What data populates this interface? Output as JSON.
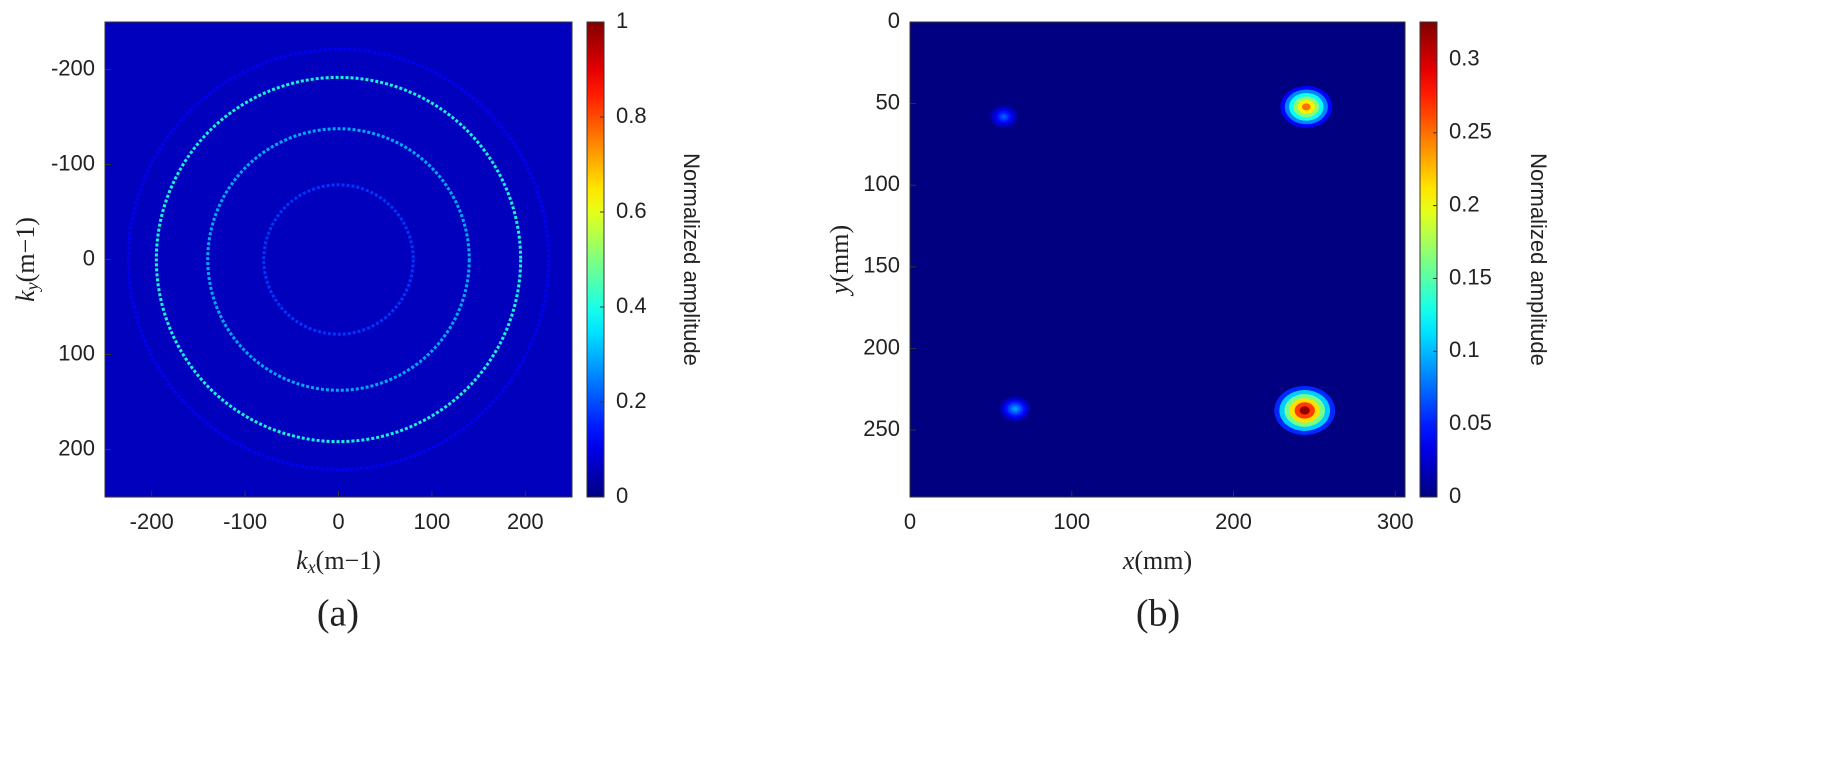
{
  "chart_data": [
    {
      "type": "heatmap",
      "caption": "(a)",
      "xlabel": {
        "var": "k",
        "sub": "x",
        "unit": "(m−1)"
      },
      "ylabel": {
        "var": "k",
        "sub": "y",
        "unit": "(m−1)"
      },
      "colorbar_label": "Normalized amplitude",
      "colormap": "jet",
      "xlim": [
        -250,
        250
      ],
      "ylim": [
        -250,
        250
      ],
      "y_reversed": true,
      "xticks": [
        -200,
        -100,
        0,
        100,
        200
      ],
      "yticks": [
        -200,
        -100,
        0,
        100,
        200
      ],
      "clim": [
        0,
        1
      ],
      "cticks": [
        0,
        0.2,
        0.4,
        0.6,
        0.8,
        1
      ],
      "rings": [
        {
          "radius": 80,
          "value": 0.18
        },
        {
          "radius": 140,
          "value": 0.3
        },
        {
          "radius": 195,
          "value": 0.4
        },
        {
          "radius": 225,
          "value": 0.12
        }
      ]
    },
    {
      "type": "heatmap",
      "caption": "(b)",
      "xlabel": {
        "var": "x",
        "unit": "(mm)"
      },
      "ylabel": {
        "var": "y",
        "unit": "(mm)"
      },
      "colorbar_label": "Normalized amplitude",
      "colormap": "jet",
      "xlim": [
        0,
        306
      ],
      "ylim": [
        0,
        291
      ],
      "y_reversed": true,
      "xticks": [
        0,
        100,
        200,
        300
      ],
      "yticks": [
        0,
        50,
        100,
        150,
        200,
        250
      ],
      "clim": [
        0,
        0.326
      ],
      "cticks": [
        0,
        0.05,
        0.1,
        0.15,
        0.2,
        0.25,
        0.3
      ],
      "spots": [
        {
          "x": 245,
          "y": 52,
          "value": 0.25
        },
        {
          "x": 244,
          "y": 238,
          "value": 0.32
        },
        {
          "x": 58,
          "y": 58,
          "value": 0.07
        },
        {
          "x": 65,
          "y": 237,
          "value": 0.09
        }
      ]
    }
  ]
}
